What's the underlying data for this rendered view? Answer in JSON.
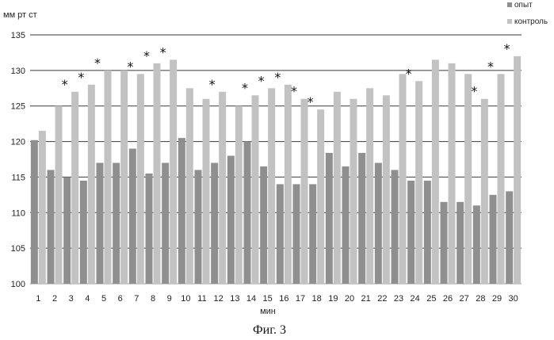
{
  "chart_data": {
    "type": "bar",
    "ylabel": "мм рт ст",
    "xlabel": "мин",
    "caption": "Фиг. 3",
    "ylim": [
      100,
      135
    ],
    "yticks": [
      100,
      105,
      110,
      115,
      120,
      125,
      130,
      135
    ],
    "grid": true,
    "legend_position": "top-right",
    "categories": [
      "1",
      "2",
      "3",
      "4",
      "5",
      "6",
      "7",
      "8",
      "9",
      "10",
      "11",
      "12",
      "13",
      "14",
      "15",
      "16",
      "17",
      "18",
      "19",
      "20",
      "21",
      "22",
      "23",
      "24",
      "25",
      "26",
      "27",
      "28",
      "29",
      "30"
    ],
    "series": [
      {
        "name": "опыт",
        "color": "#8f8f8f",
        "values": [
          120.2,
          116,
          115,
          114.5,
          117,
          117,
          119,
          115.5,
          117,
          120.5,
          116,
          117,
          118,
          120,
          116.5,
          114,
          114,
          114,
          118.4,
          116.5,
          118.4,
          117,
          116,
          114.5,
          114.5,
          111.5,
          111.5,
          111,
          112.5,
          113
        ]
      },
      {
        "name": "контроль",
        "color": "#c2c2c2",
        "values": [
          121.5,
          125,
          127,
          128,
          130,
          130,
          129.5,
          131,
          131.5,
          127.5,
          126,
          127,
          125,
          126.5,
          127.5,
          128,
          126,
          124.5,
          127,
          126,
          127.5,
          126.5,
          129.5,
          128.5,
          131.5,
          131,
          129.5,
          126,
          129.5,
          132
        ]
      }
    ],
    "significance_marker": "*",
    "significant_categories": [
      "3",
      "4",
      "5",
      "7",
      "8",
      "9",
      "12",
      "14",
      "15",
      "16",
      "17",
      "18",
      "24",
      "28",
      "29",
      "30"
    ]
  }
}
